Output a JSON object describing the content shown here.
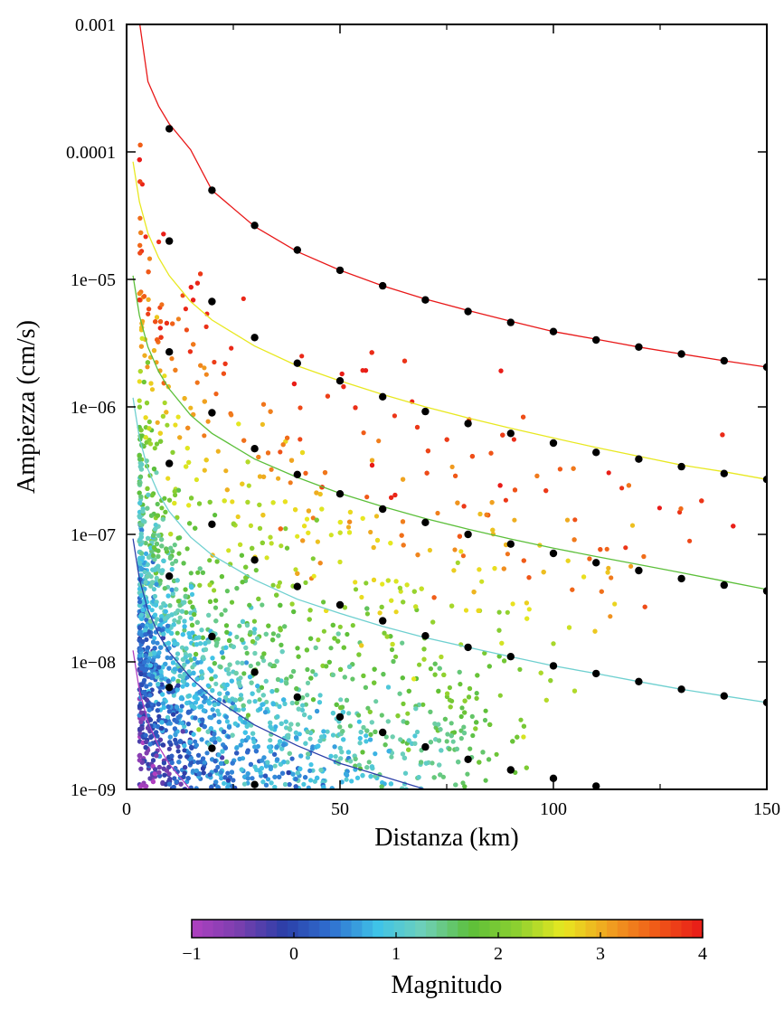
{
  "chart_data": {
    "type": "scatter",
    "title": "",
    "xlabel": "Distanza (km)",
    "ylabel": "Ampiezza (cm/s)",
    "xlim": [
      0,
      150
    ],
    "ylim": [
      1e-09,
      0.001
    ],
    "yscale": "log",
    "x_ticks": [
      0,
      50,
      100,
      150
    ],
    "x_tick_labels": [
      "0",
      "50",
      "100",
      "150"
    ],
    "y_ticks": [
      1e-09,
      1e-08,
      1e-07,
      1e-06,
      1e-05,
      0.0001,
      0.001
    ],
    "y_tick_labels": [
      "1e−09",
      "1e−08",
      "1e−07",
      "1e−06",
      "1e−05",
      "0.0001",
      "0.001"
    ],
    "grid": false,
    "colorbar": {
      "label": "Magnitudo",
      "range": [
        -1,
        4
      ],
      "ticks": [
        -1,
        0,
        1,
        2,
        3,
        4
      ],
      "tick_labels": [
        "−1",
        "0",
        "1",
        "2",
        "3",
        "4"
      ],
      "colors": [
        "#b040c0",
        "#7a3fae",
        "#2b3fa8",
        "#2f6fd0",
        "#3fc3e8",
        "#6fd0b8",
        "#5cbf3a",
        "#8dd030",
        "#e8e820",
        "#f0a020",
        "#f05a18",
        "#e81818"
      ]
    },
    "series": [
      {
        "magnitude": -1,
        "color": "#b040c0",
        "curve": [
          [
            1.5,
            1.23e-08
          ],
          [
            3,
            5.95e-09
          ],
          [
            5,
            3.39e-09
          ],
          [
            7.5,
            2.18e-09
          ],
          [
            10,
            1.58e-09
          ],
          [
            15,
            9.9e-10
          ]
        ],
        "points": [
          [
            10,
            6.3e-09
          ],
          [
            20,
            2.1e-09
          ],
          [
            30,
            1.09e-09
          ]
        ]
      },
      {
        "magnitude": 0,
        "color": "#2b3fa8",
        "curve": [
          [
            1.5,
            9.26e-08
          ],
          [
            3,
            4.47e-08
          ],
          [
            5,
            2.55e-08
          ],
          [
            7.5,
            1.64e-08
          ],
          [
            10,
            1.19e-08
          ],
          [
            15,
            7.5e-09
          ],
          [
            20,
            5.3e-09
          ],
          [
            30,
            3.2e-09
          ],
          [
            40,
            2.2e-09
          ],
          [
            50,
            1.6e-09
          ],
          [
            70,
            1e-09
          ],
          [
            80,
            8.3e-10
          ]
        ],
        "points": [
          [
            10,
            4.7e-08
          ],
          [
            20,
            1.58e-08
          ],
          [
            30,
            8.3e-09
          ],
          [
            40,
            5.3e-09
          ],
          [
            50,
            3.7e-09
          ],
          [
            60,
            2.8e-09
          ],
          [
            70,
            2.15e-09
          ],
          [
            80,
            1.72e-09
          ],
          [
            90,
            1.42e-09
          ],
          [
            100,
            1.22e-09
          ],
          [
            110,
            1.06e-09
          ]
        ]
      },
      {
        "magnitude": 1,
        "color": "#6fd0d0",
        "curve": [
          [
            1.5,
            1.18e-06
          ],
          [
            3,
            5.7e-07
          ],
          [
            5,
            3.24e-07
          ],
          [
            7.5,
            2.08e-07
          ],
          [
            10,
            1.51e-07
          ],
          [
            15,
            9.5e-08
          ],
          [
            20,
            6.9e-08
          ],
          [
            30,
            4.4e-08
          ],
          [
            40,
            3.1e-08
          ],
          [
            50,
            2.4e-08
          ],
          [
            60,
            1.9e-08
          ],
          [
            70,
            1.55e-08
          ],
          [
            80,
            1.3e-08
          ],
          [
            90,
            1.1e-08
          ],
          [
            100,
            9.3e-09
          ],
          [
            110,
            8.1e-09
          ],
          [
            120,
            7e-09
          ],
          [
            130,
            6.1e-09
          ],
          [
            140,
            5.4e-09
          ],
          [
            150,
            4.8e-09
          ]
        ],
        "points": [
          [
            10,
            3.6e-07
          ],
          [
            20,
            1.2e-07
          ],
          [
            30,
            6.3e-08
          ],
          [
            40,
            3.9e-08
          ],
          [
            50,
            2.8e-08
          ],
          [
            60,
            2.1e-08
          ],
          [
            70,
            1.6e-08
          ],
          [
            80,
            1.3e-08
          ],
          [
            90,
            1.1e-08
          ],
          [
            100,
            9.3e-09
          ],
          [
            110,
            8.1e-09
          ],
          [
            120,
            7e-09
          ],
          [
            130,
            6.1e-09
          ],
          [
            140,
            5.4e-09
          ],
          [
            150,
            4.8e-09
          ]
        ]
      },
      {
        "magnitude": 2,
        "color": "#5cbf3a",
        "curve": [
          [
            1.5,
            1.07e-05
          ],
          [
            3,
            5.2e-06
          ],
          [
            5,
            2.95e-06
          ],
          [
            7.5,
            1.89e-06
          ],
          [
            10,
            1.38e-06
          ],
          [
            15,
            8.6e-07
          ],
          [
            20,
            6.2e-07
          ],
          [
            30,
            3.9e-07
          ],
          [
            40,
            2.8e-07
          ],
          [
            50,
            2.1e-07
          ],
          [
            60,
            1.65e-07
          ],
          [
            70,
            1.33e-07
          ],
          [
            80,
            1.1e-07
          ],
          [
            90,
            9.2e-08
          ],
          [
            100,
            7.8e-08
          ],
          [
            110,
            6.7e-08
          ],
          [
            120,
            5.8e-08
          ],
          [
            130,
            5e-08
          ],
          [
            140,
            4.3e-08
          ],
          [
            150,
            3.7e-08
          ]
        ],
        "points": [
          [
            10,
            2.7e-06
          ],
          [
            20,
            9e-07
          ],
          [
            30,
            4.7e-07
          ],
          [
            40,
            2.95e-07
          ],
          [
            50,
            2.08e-07
          ],
          [
            60,
            1.58e-07
          ],
          [
            70,
            1.24e-07
          ],
          [
            80,
            1e-07
          ],
          [
            90,
            8.4e-08
          ],
          [
            100,
            7.1e-08
          ],
          [
            110,
            6e-08
          ],
          [
            120,
            5.2e-08
          ],
          [
            130,
            4.5e-08
          ],
          [
            140,
            4e-08
          ],
          [
            150,
            3.6e-08
          ]
        ]
      },
      {
        "magnitude": 3,
        "color": "#e8e820",
        "curve": [
          [
            1.5,
            8.38e-05
          ],
          [
            3,
            4.05e-05
          ],
          [
            5,
            2.3e-05
          ],
          [
            7.5,
            1.48e-05
          ],
          [
            10,
            1.07e-05
          ],
          [
            15,
            6.7e-06
          ],
          [
            20,
            4.8e-06
          ],
          [
            30,
            3e-06
          ],
          [
            40,
            2.1e-06
          ],
          [
            50,
            1.6e-06
          ],
          [
            60,
            1.25e-06
          ],
          [
            70,
            1e-06
          ],
          [
            80,
            8.2e-07
          ],
          [
            90,
            6.8e-07
          ],
          [
            100,
            5.7e-07
          ],
          [
            110,
            4.8e-07
          ],
          [
            120,
            4.1e-07
          ],
          [
            130,
            3.5e-07
          ],
          [
            140,
            3.1e-07
          ],
          [
            150,
            2.7e-07
          ]
        ],
        "points": [
          [
            10,
            2e-05
          ],
          [
            20,
            6.7e-06
          ],
          [
            30,
            3.5e-06
          ],
          [
            40,
            2.2e-06
          ],
          [
            50,
            1.6e-06
          ],
          [
            60,
            1.2e-06
          ],
          [
            70,
            9.2e-07
          ],
          [
            80,
            7.4e-07
          ],
          [
            90,
            6.2e-07
          ],
          [
            100,
            5.2e-07
          ],
          [
            110,
            4.4e-07
          ],
          [
            120,
            3.9e-07
          ],
          [
            130,
            3.4e-07
          ],
          [
            140,
            3e-07
          ],
          [
            150,
            2.7e-07
          ]
        ]
      },
      {
        "magnitude": 4,
        "color": "#e81818",
        "curve": [
          [
            3,
            0.00105
          ],
          [
            5,
            0.000356
          ],
          [
            7.5,
            0.000229
          ],
          [
            10,
            0.000166
          ],
          [
            15,
            0.000104
          ],
          [
            20,
            5e-05
          ],
          [
            30,
            2.6e-05
          ],
          [
            40,
            1.65e-05
          ],
          [
            50,
            1.18e-05
          ],
          [
            60,
            8.9e-06
          ],
          [
            70,
            7e-06
          ],
          [
            80,
            5.7e-06
          ],
          [
            90,
            4.7e-06
          ],
          [
            100,
            3.9e-06
          ],
          [
            110,
            3.4e-06
          ],
          [
            120,
            2.95e-06
          ],
          [
            130,
            2.6e-06
          ],
          [
            140,
            2.3e-06
          ],
          [
            150,
            2.05e-06
          ]
        ],
        "points": [
          [
            10,
            0.000152
          ],
          [
            20,
            5e-05
          ],
          [
            30,
            2.65e-05
          ],
          [
            40,
            1.7e-05
          ],
          [
            50,
            1.18e-05
          ],
          [
            60,
            8.9e-06
          ],
          [
            70,
            6.9e-06
          ],
          [
            80,
            5.6e-06
          ],
          [
            90,
            4.6e-06
          ],
          [
            100,
            3.9e-06
          ],
          [
            110,
            3.35e-06
          ],
          [
            120,
            2.95e-06
          ],
          [
            130,
            2.6e-06
          ],
          [
            140,
            2.3e-06
          ],
          [
            150,
            2.05e-06
          ]
        ]
      }
    ]
  }
}
